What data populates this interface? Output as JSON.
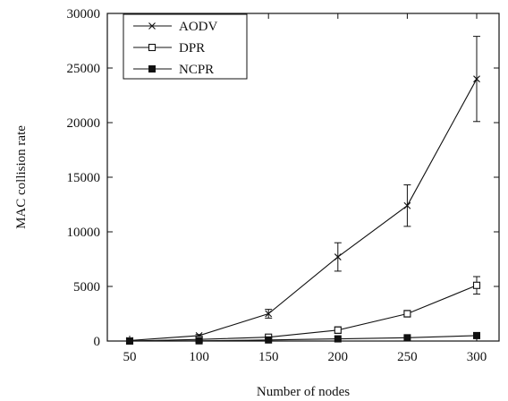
{
  "chart_data": {
    "type": "line",
    "xlabel": "Number of nodes",
    "ylabel": "MAC collision rate",
    "x": [
      50,
      100,
      150,
      200,
      250,
      300
    ],
    "xlim": [
      50,
      300
    ],
    "ylim": [
      0,
      30000
    ],
    "x_ticks": [
      "50",
      "100",
      "150",
      "200",
      "250",
      "300"
    ],
    "y_ticks": [
      "0",
      "5000",
      "10000",
      "15000",
      "20000",
      "25000",
      "30000"
    ],
    "legend_position": "top-left",
    "grid": false,
    "series": [
      {
        "name": "AODV",
        "marker": "x-cross",
        "values": [
          50,
          500,
          2500,
          7700,
          12400,
          24000
        ],
        "error": [
          0,
          100,
          400,
          1300,
          1900,
          3900
        ]
      },
      {
        "name": "DPR",
        "marker": "open-square",
        "values": [
          0,
          150,
          350,
          1000,
          2500,
          5100
        ],
        "error": [
          0,
          0,
          100,
          300,
          300,
          800
        ]
      },
      {
        "name": "NCPR",
        "marker": "filled-square",
        "values": [
          0,
          20,
          100,
          200,
          300,
          500
        ],
        "error": [
          0,
          0,
          0,
          0,
          0,
          0
        ]
      }
    ]
  }
}
